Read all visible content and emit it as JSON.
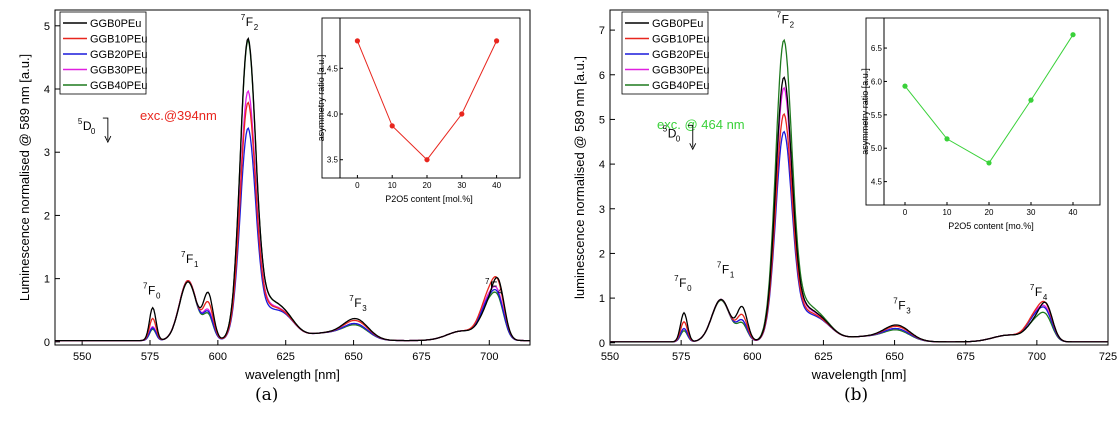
{
  "chart_data": [
    {
      "type": "line",
      "panel": "a",
      "panel_label": "(a)",
      "xlabel": "wavelength [nm]",
      "ylabel": "Luminescence normalised @ 589 nm [a.u.]",
      "xlim": [
        540,
        715
      ],
      "ylim": [
        -0.05,
        5.25
      ],
      "xticks": [
        550,
        575,
        600,
        625,
        650,
        675,
        700
      ],
      "yticks": [
        0,
        1,
        2,
        3,
        4,
        5
      ],
      "legend": [
        "GGB0PEu",
        "GGB10PEu",
        "GGB20PEu",
        "GGB30PEu",
        "GGB40PEu"
      ],
      "excitation_label": "exc.@394nm",
      "excitation_color": "#e8261e",
      "series_peaks": [
        {
          "name": "GGB0PEu",
          "color": "#000000",
          "p575": 0.52,
          "p589": 0.98,
          "p596": 0.95,
          "p611": 4.85,
          "p651": 0.3,
          "p700": 0.5,
          "p703": 0.68
        },
        {
          "name": "GGB10PEu",
          "color": "#e8261e",
          "p575": 0.35,
          "p589": 1.0,
          "p596": 0.8,
          "p611": 3.9,
          "p651": 0.27,
          "p700": 0.68,
          "p703": 0.55
        },
        {
          "name": "GGB20PEu",
          "color": "#1a1adc",
          "p575": 0.2,
          "p589": 1.0,
          "p596": 0.65,
          "p611": 3.52,
          "p651": 0.22,
          "p700": 0.58,
          "p703": 0.4
        },
        {
          "name": "GGB30PEu",
          "color": "#e020e0",
          "p575": 0.22,
          "p589": 1.0,
          "p596": 0.68,
          "p611": 4.07,
          "p651": 0.22,
          "p700": 0.62,
          "p703": 0.42
        },
        {
          "name": "GGB40PEu",
          "color": "#1f7a1f",
          "p575": 0.18,
          "p589": 0.98,
          "p596": 0.62,
          "p611": 4.82,
          "p651": 0.2,
          "p700": 0.55,
          "p703": 0.38
        }
      ],
      "annotations": [
        {
          "base": "7",
          "label": "F",
          "sub": "0",
          "x": 575,
          "y": 0.75
        },
        {
          "base": "7",
          "label": "F",
          "sub": "1",
          "x": 589,
          "y": 1.25
        },
        {
          "base": "7",
          "label": "F",
          "sub": "2",
          "x": 611,
          "y": 5.0
        },
        {
          "base": "7",
          "label": "F",
          "sub": "3",
          "x": 651,
          "y": 0.55
        },
        {
          "base": "7",
          "label": "F",
          "sub": "4",
          "x": 701,
          "y": 0.82
        },
        {
          "base": "5",
          "label": "D",
          "sub": "0",
          "x": 551,
          "y": 3.35
        }
      ],
      "inset": {
        "xlabel": "P2O5 content [mol.%]",
        "ylabel": "asymmetry ratio [a.u.]",
        "x": [
          0,
          10,
          20,
          30,
          40
        ],
        "y": [
          4.8,
          3.87,
          3.5,
          4.0,
          4.8
        ],
        "xlim": [
          -5,
          45
        ],
        "ylim": [
          3.3,
          5.05
        ],
        "xticks": [
          0,
          10,
          20,
          30,
          40
        ],
        "yticks": [
          3.5,
          4.0,
          4.5
        ],
        "ytick_labels": [
          "3.5",
          "4.0",
          "4.5"
        ],
        "color": "#e8261e"
      }
    },
    {
      "type": "line",
      "panel": "b",
      "panel_label": "(b)",
      "xlabel": "wavelength [nm]",
      "ylabel": "luminescence normalised @ 589 nm [a.u.]",
      "xlim": [
        550,
        725
      ],
      "ylim": [
        -0.05,
        7.45
      ],
      "xticks": [
        550,
        575,
        600,
        625,
        650,
        675,
        700,
        725
      ],
      "yticks": [
        0,
        1,
        2,
        3,
        4,
        5,
        6,
        7
      ],
      "legend": [
        "GGB0PEu",
        "GGB10PEu",
        "GGB20PEu",
        "GGB30PEu",
        "GGB40PEu"
      ],
      "excitation_label": "exc. @ 464 nm",
      "excitation_color": "#3ad13a",
      "series_peaks": [
        {
          "name": "GGB0PEu",
          "color": "#000000",
          "p575": 0.65,
          "p589": 1.0,
          "p596": 0.98,
          "p611": 5.92,
          "p651": 0.33,
          "p700": 0.45,
          "p703": 0.6
        },
        {
          "name": "GGB10PEu",
          "color": "#e8261e",
          "p575": 0.45,
          "p589": 1.0,
          "p596": 0.8,
          "p611": 5.15,
          "p651": 0.3,
          "p700": 0.6,
          "p703": 0.5
        },
        {
          "name": "GGB20PEu",
          "color": "#1a1adc",
          "p575": 0.3,
          "p589": 1.0,
          "p596": 0.68,
          "p611": 4.78,
          "p651": 0.25,
          "p700": 0.55,
          "p703": 0.4
        },
        {
          "name": "GGB30PEu",
          "color": "#e020e0",
          "p575": 0.3,
          "p589": 1.0,
          "p596": 0.68,
          "p611": 5.7,
          "p651": 0.25,
          "p700": 0.58,
          "p703": 0.42
        },
        {
          "name": "GGB40PEu",
          "color": "#1f7a1f",
          "p575": 0.25,
          "p589": 0.98,
          "p596": 0.62,
          "p611": 6.7,
          "p651": 0.22,
          "p700": 0.45,
          "p703": 0.35
        }
      ],
      "annotations": [
        {
          "base": "7",
          "label": "F",
          "sub": "0",
          "x": 575,
          "y": 1.25
        },
        {
          "base": "7",
          "label": "F",
          "sub": "1",
          "x": 590,
          "y": 1.55
        },
        {
          "base": "7",
          "label": "F",
          "sub": "2",
          "x": 611,
          "y": 7.15
        },
        {
          "base": "7",
          "label": "F",
          "sub": "3",
          "x": 652,
          "y": 0.75
        },
        {
          "base": "7",
          "label": "F",
          "sub": "4",
          "x": 700,
          "y": 1.05
        },
        {
          "base": "5",
          "label": "D",
          "sub": "0",
          "x": 571,
          "y": 4.6
        }
      ],
      "inset": {
        "xlabel": "P2O5 content [mo.%]",
        "ylabel": "asymmetry ratio [a.u.]",
        "x": [
          0,
          10,
          20,
          30,
          40
        ],
        "y": [
          5.93,
          5.14,
          4.78,
          5.72,
          6.7
        ],
        "xlim": [
          -5,
          45
        ],
        "ylim": [
          4.15,
          6.95
        ],
        "xticks": [
          0,
          10,
          20,
          30,
          40
        ],
        "yticks": [
          4.5,
          5.0,
          5.5,
          6.0,
          6.5
        ],
        "ytick_labels": [
          "4.5",
          "5.0",
          "5.5",
          "6.0",
          "6.5"
        ],
        "color": "#3ad13a"
      }
    }
  ]
}
